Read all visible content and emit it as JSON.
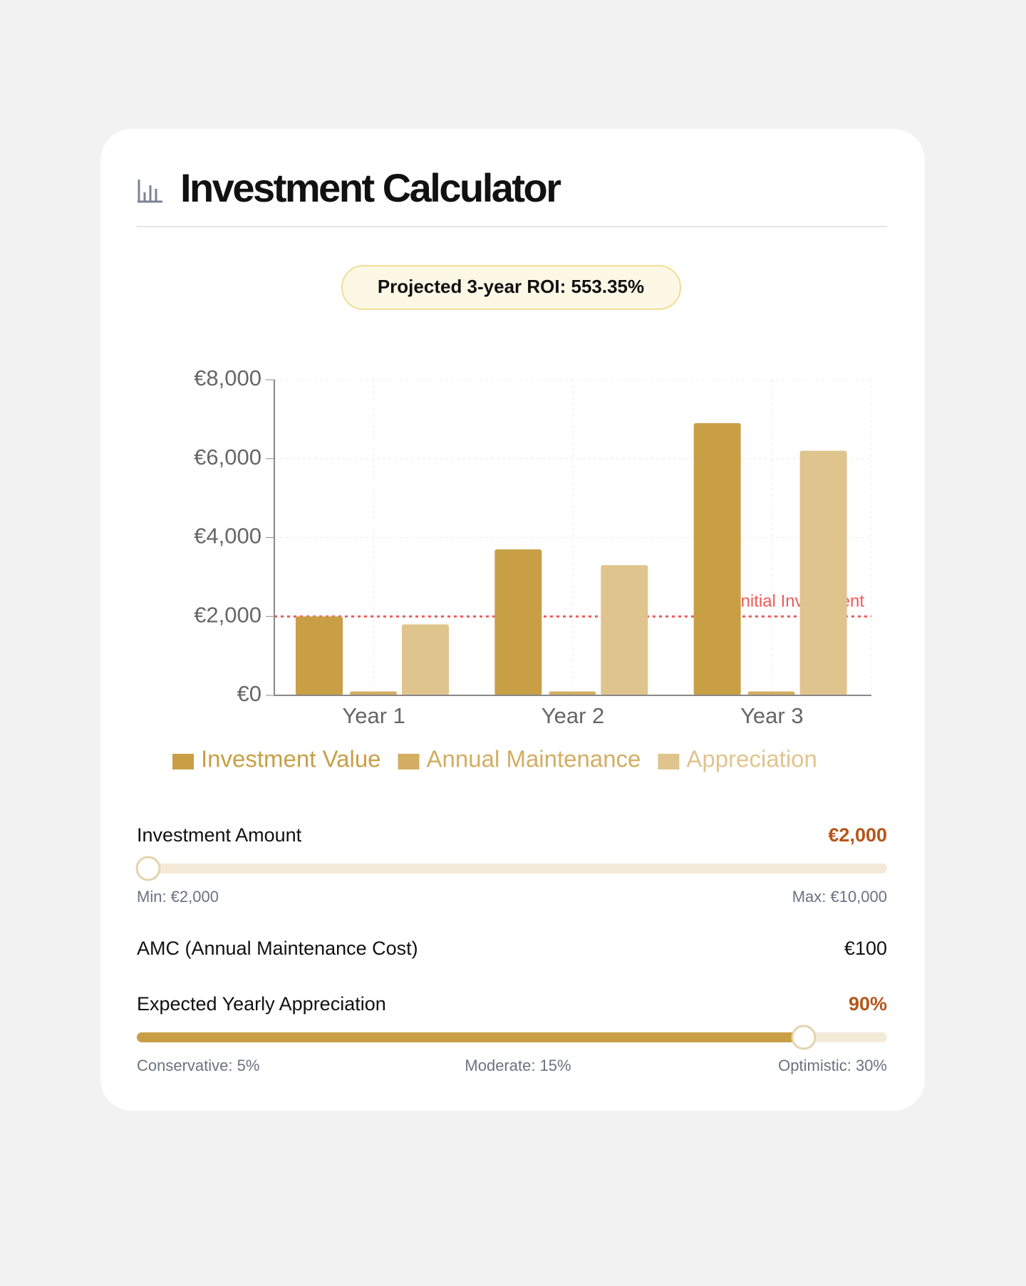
{
  "header": {
    "title": "Investment Calculator"
  },
  "roi_badge": {
    "text": "Projected 3-year ROI: 553.35%"
  },
  "chart_data": {
    "type": "bar",
    "categories": [
      "Year 1",
      "Year 2",
      "Year 3"
    ],
    "series": [
      {
        "name": "Investment Value",
        "color": "#c89f45",
        "values": [
          2000,
          3700,
          6900
        ]
      },
      {
        "name": "Annual Maintenance",
        "color": "#d3ad62",
        "values": [
          100,
          100,
          100
        ]
      },
      {
        "name": "Appreciation",
        "color": "#e0c48e",
        "values": [
          1800,
          3300,
          6200
        ]
      }
    ],
    "ylim": [
      0,
      8000
    ],
    "yticks": [
      {
        "value": 0,
        "label": "€0"
      },
      {
        "value": 2000,
        "label": "€2,000"
      },
      {
        "value": 4000,
        "label": "€4,000"
      },
      {
        "value": 6000,
        "label": "€6,000"
      },
      {
        "value": 8000,
        "label": "€8,000"
      }
    ],
    "grid": true,
    "reference_line": {
      "value": 2000,
      "label": "Initial Investment",
      "color": "#f05a5a"
    }
  },
  "controls": {
    "investment": {
      "label": "Investment Amount",
      "value": "€2,000",
      "min": "Min: €2,000",
      "max": "Max: €10,000"
    },
    "amc": {
      "label": "AMC (Annual Maintenance Cost)",
      "value": "€100"
    },
    "appreciation": {
      "label": "Expected Yearly Appreciation",
      "value": "90%",
      "marks": [
        "Conservative: 5%",
        "Moderate: 15%",
        "Optimistic: 30%"
      ]
    }
  }
}
